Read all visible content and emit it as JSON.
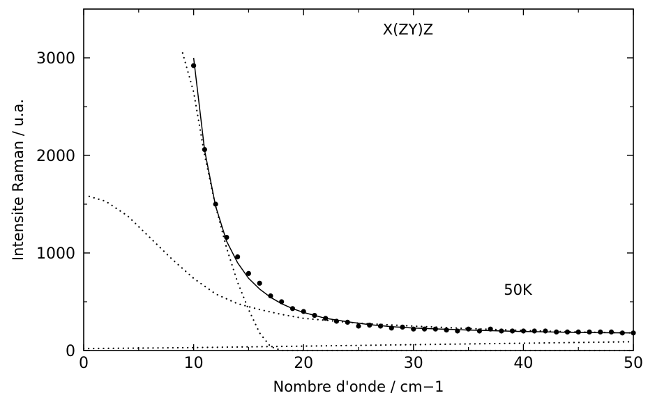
{
  "chart_data": {
    "type": "scatter",
    "title": "",
    "xlabel": "Nombre d'onde / cm−1",
    "ylabel": "Intensite Raman / u.a.",
    "xlim": [
      0,
      50
    ],
    "ylim": [
      0,
      3500
    ],
    "x_ticks": [
      0,
      10,
      20,
      30,
      40,
      50
    ],
    "y_ticks": [
      0,
      1000,
      2000,
      3000
    ],
    "grid": false,
    "annotations": [
      {
        "id": "polarization",
        "text": "X(ZY)Z",
        "x": 29.5,
        "y": 3240
      },
      {
        "id": "temperature",
        "text": "50K",
        "x": 39.5,
        "y": 570
      }
    ],
    "series": [
      {
        "style": "markers",
        "x": [
          10,
          11,
          12,
          13,
          14,
          15,
          16,
          17,
          18,
          19,
          20,
          21,
          22,
          23,
          24,
          25,
          26,
          27,
          28,
          29,
          30,
          31,
          32,
          33,
          34,
          35,
          36,
          37,
          38,
          39,
          40,
          41,
          42,
          43,
          44,
          45,
          46,
          47,
          48,
          49,
          50
        ],
        "y": [
          2920,
          2060,
          1500,
          1160,
          960,
          790,
          690,
          560,
          500,
          430,
          400,
          360,
          330,
          300,
          290,
          250,
          260,
          250,
          230,
          240,
          220,
          220,
          220,
          210,
          200,
          220,
          200,
          220,
          200,
          200,
          200,
          200,
          200,
          190,
          190,
          190,
          190,
          190,
          190,
          180,
          180
        ]
      },
      {
        "style": "solid",
        "x": [
          10,
          11,
          12,
          13,
          14,
          15,
          16,
          17,
          18,
          19,
          20,
          22,
          24,
          26,
          28,
          30,
          35,
          40,
          45,
          50
        ],
        "y": [
          3000,
          2050,
          1480,
          1120,
          900,
          740,
          630,
          545,
          480,
          430,
          390,
          330,
          295,
          265,
          245,
          230,
          210,
          195,
          185,
          180
        ]
      },
      {
        "style": "dotted",
        "x": [
          9,
          10,
          11,
          12,
          13,
          14,
          15,
          16,
          17,
          18,
          19,
          20,
          50
        ],
        "y": [
          3050,
          2650,
          2000,
          1480,
          1050,
          700,
          420,
          180,
          40,
          0,
          0,
          0,
          0
        ]
      },
      {
        "style": "dotted",
        "x": [
          0.5,
          2,
          4,
          6,
          8,
          10,
          12,
          14,
          16,
          18,
          20,
          25,
          30,
          35,
          40,
          45,
          50
        ],
        "y": [
          1580,
          1530,
          1380,
          1160,
          940,
          740,
          580,
          480,
          420,
          370,
          330,
          280,
          250,
          225,
          205,
          190,
          180
        ]
      },
      {
        "style": "dotted",
        "x": [
          0,
          10,
          20,
          30,
          40,
          50
        ],
        "y": [
          20,
          30,
          45,
          60,
          75,
          90
        ]
      }
    ]
  }
}
